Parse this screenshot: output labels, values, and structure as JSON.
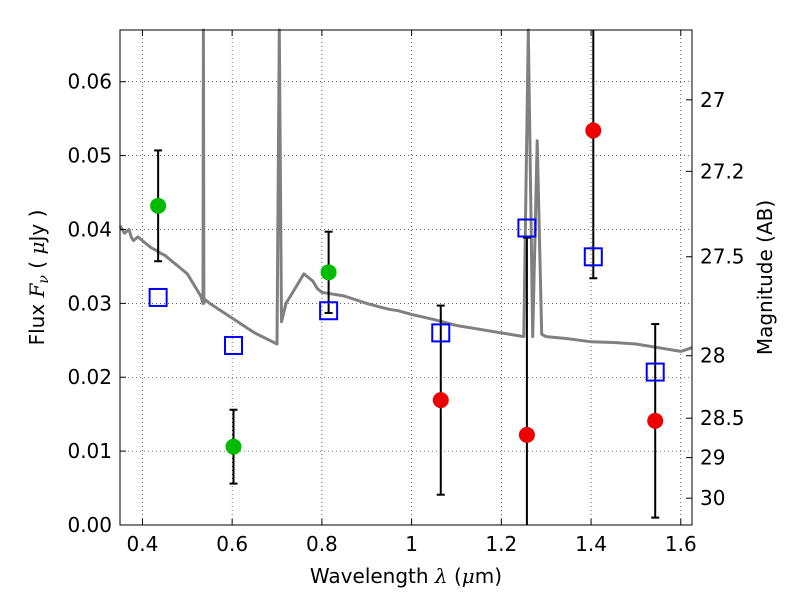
{
  "chart_data": {
    "type": "scatter",
    "xlabel": {
      "prefix": "Wavelength  ",
      "symbol": "λ",
      "unit_open": " (",
      "unit_mu": "μ",
      "unit_close": "m)"
    },
    "ylabel": {
      "prefix": "Flux  ",
      "symbol": "F",
      "subscript": "ν",
      "unit_open": "  ( ",
      "unit_mu": "μ",
      "unit_close": "Jy )"
    },
    "y2label": "Magnitude (AB)",
    "xlim": [
      0.35,
      1.625
    ],
    "ylim": [
      0.0,
      0.067
    ],
    "x_ticks": [
      0.4,
      0.6,
      0.8,
      1.0,
      1.2,
      1.4,
      1.6
    ],
    "x_tick_labels": [
      "0.4",
      "0.6",
      "0.8",
      "1",
      "1.2",
      "1.4",
      "1.6"
    ],
    "y_ticks": [
      0.0,
      0.01,
      0.02,
      0.03,
      0.04,
      0.05,
      0.06
    ],
    "y_tick_labels": [
      "0.00",
      "0.01",
      "0.02",
      "0.03",
      "0.04",
      "0.05",
      "0.06"
    ],
    "y2_ticks": [
      27,
      27.2,
      27.5,
      28,
      28.5,
      29,
      30
    ],
    "y2_tick_labels": [
      "27",
      "27.2",
      "27.5",
      "28",
      "28.5",
      "29",
      "30"
    ],
    "grid": true,
    "colors": {
      "spectrum": "#808080",
      "detection": "#00bb00",
      "nondetection": "#ee0000",
      "model": "#0000ff",
      "errorbar": "#000000"
    },
    "series": [
      {
        "role": "spectrum",
        "type": "line",
        "x": [
          0.35,
          0.36,
          0.37,
          0.375,
          0.38,
          0.39,
          0.4,
          0.41,
          0.42,
          0.43,
          0.44,
          0.45,
          0.46,
          0.47,
          0.48,
          0.49,
          0.5,
          0.51,
          0.52,
          0.53,
          0.535,
          0.536,
          0.537,
          0.54,
          0.55,
          0.6,
          0.65,
          0.7,
          0.705,
          0.71,
          0.72,
          0.73,
          0.75,
          0.76,
          0.77,
          0.78,
          0.79,
          0.8,
          0.82,
          0.85,
          0.9,
          0.93,
          0.95,
          0.97,
          1.0,
          1.05,
          1.1,
          1.15,
          1.2,
          1.25,
          1.26,
          1.27,
          1.28,
          1.29,
          1.3,
          1.35,
          1.4,
          1.45,
          1.5,
          1.55,
          1.6,
          1.625
        ],
        "y": [
          0.0405,
          0.0395,
          0.04,
          0.039,
          0.0385,
          0.039,
          0.0385,
          0.038,
          0.0375,
          0.0372,
          0.0368,
          0.0365,
          0.036,
          0.0355,
          0.035,
          0.0345,
          0.034,
          0.033,
          0.032,
          0.031,
          0.03,
          0.067,
          0.03,
          0.0305,
          0.03,
          0.028,
          0.026,
          0.0245,
          0.067,
          0.0275,
          0.03,
          0.031,
          0.033,
          0.034,
          0.0335,
          0.033,
          0.032,
          0.0315,
          0.0313,
          0.031,
          0.03,
          0.0295,
          0.0292,
          0.029,
          0.0285,
          0.0278,
          0.027,
          0.0265,
          0.026,
          0.0255,
          0.067,
          0.0255,
          0.052,
          0.0258,
          0.0255,
          0.0252,
          0.0248,
          0.0247,
          0.0245,
          0.024,
          0.0235,
          0.024
        ]
      },
      {
        "role": "model",
        "type": "scatter",
        "marker": "square",
        "x": [
          0.435,
          0.603,
          0.815,
          1.065,
          1.257,
          1.405,
          1.543
        ],
        "y": [
          0.0308,
          0.0243,
          0.029,
          0.026,
          0.0402,
          0.0363,
          0.0207
        ]
      },
      {
        "role": "detection",
        "type": "scatter",
        "marker": "circle",
        "x": [
          0.435,
          0.603,
          0.815
        ],
        "y": [
          0.0432,
          0.0106,
          0.0342
        ],
        "yerr": [
          0.0075,
          0.005,
          0.0055
        ]
      },
      {
        "role": "nondetection",
        "type": "scatter",
        "marker": "circle",
        "x": [
          1.065,
          1.257,
          1.405,
          1.543
        ],
        "y": [
          0.0169,
          0.0122,
          0.0534,
          0.0141
        ],
        "yerr": [
          0.0128,
          0.0267,
          0.02,
          0.0131
        ]
      }
    ]
  }
}
